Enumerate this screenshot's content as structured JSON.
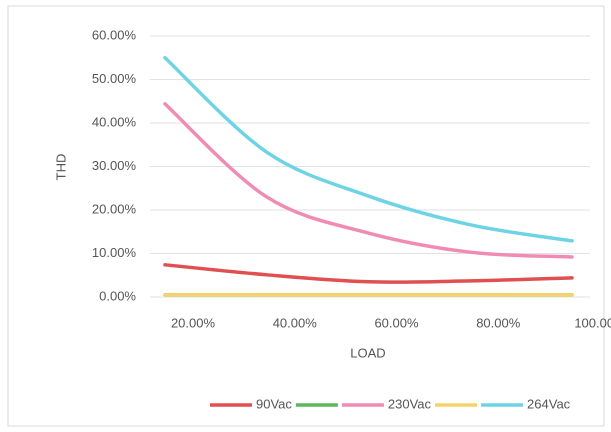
{
  "chart_data": {
    "type": "line",
    "x_label": "LOAD",
    "y_label": "THD",
    "categories": [
      "20.00%",
      "40.00%",
      "60.00%",
      "80.00%",
      "100.00%"
    ],
    "series": [
      {
        "name": "90Vac",
        "color": "#e05050",
        "values": [
          7.4,
          5.1,
          3.5,
          3.7,
          4.4
        ]
      },
      {
        "name": null,
        "color": "#5cb85c",
        "values": [
          0.5,
          0.5,
          0.5,
          0.5,
          0.5
        ]
      },
      {
        "name": "230Vac",
        "color": "#f08cb4",
        "values": [
          44.4,
          23,
          14.7,
          10.3,
          9.2
        ]
      },
      {
        "name": null,
        "color": "#f5d36a",
        "values": [
          0.5,
          0.5,
          0.5,
          0.5,
          0.5
        ]
      },
      {
        "name": "264Vac",
        "color": "#6fd3e6",
        "values": [
          55,
          33.3,
          23.2,
          16.6,
          12.9
        ]
      }
    ],
    "ylim": [
      0,
      60
    ],
    "yticks": [
      {
        "value": 0,
        "label": "0.00%"
      },
      {
        "value": 10,
        "label": "10.00%"
      },
      {
        "value": 20,
        "label": "20.00%"
      },
      {
        "value": 30,
        "label": "30.00%"
      },
      {
        "value": 40,
        "label": "40.00%"
      },
      {
        "value": 50,
        "label": "50.00%"
      },
      {
        "value": 60,
        "label": "60.00%"
      }
    ],
    "grid": true
  }
}
